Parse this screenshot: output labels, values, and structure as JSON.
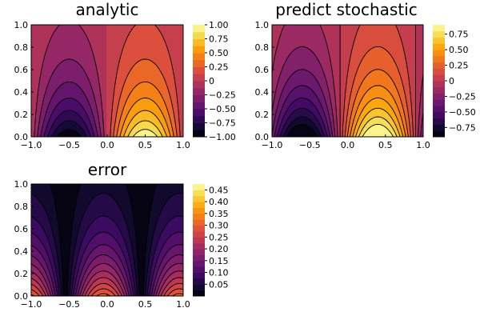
{
  "chart_data": [
    {
      "type": "heatmap",
      "subtype": "filled-contour",
      "title": "analytic",
      "colormap": "inferno",
      "x_ticks": [
        "−1.0",
        "−0.5",
        "0.0",
        "0.5",
        "1.0"
      ],
      "y_ticks": [
        "0.0",
        "0.2",
        "0.4",
        "0.6",
        "0.8",
        "1.0"
      ],
      "xlim": [
        -1,
        1
      ],
      "ylim": [
        0,
        1
      ],
      "colorbar": {
        "ticks": [
          "1.00",
          "0.75",
          "0.50",
          "0.25",
          "0",
          "−0.25",
          "−0.50",
          "−0.75",
          "−1.00"
        ],
        "levels": [
          -1.0,
          -0.875,
          -0.75,
          -0.625,
          -0.5,
          -0.375,
          -0.25,
          -0.125,
          0.0,
          0.125,
          0.25,
          0.375,
          0.5,
          0.625,
          0.75,
          0.875,
          1.0
        ]
      },
      "field": {
        "form": "sin(pi*x)*exp(-2*y)",
        "mode": "analytic",
        "x_shift": 0.0,
        "y_decay": 2.0
      }
    },
    {
      "type": "heatmap",
      "subtype": "filled-contour",
      "title": "predict stochastic",
      "colormap": "inferno",
      "x_ticks": [
        "−1.0",
        "−0.5",
        "0.0",
        "0.5",
        "1.0"
      ],
      "y_ticks": [
        "0.0",
        "0.2",
        "0.4",
        "0.6",
        "0.8",
        "1.0"
      ],
      "xlim": [
        -1,
        1
      ],
      "ylim": [
        0,
        1
      ],
      "colorbar": {
        "ticks": [
          "0.75",
          "0.50",
          "0.25",
          "0",
          "−0.25",
          "−0.50",
          "−0.75"
        ],
        "levels": [
          -0.9,
          -0.8,
          -0.7,
          -0.6,
          -0.5,
          -0.4,
          -0.3,
          -0.2,
          -0.1,
          0.0,
          0.1,
          0.2,
          0.3,
          0.4,
          0.5,
          0.6,
          0.7,
          0.8,
          0.9
        ]
      },
      "field": {
        "form": "sin(pi*(x+0.1))*exp(-2*y)",
        "mode": "predict",
        "x_shift": 0.1,
        "y_decay": 2.0
      }
    },
    {
      "type": "heatmap",
      "subtype": "filled-contour",
      "title": "error",
      "colormap": "inferno",
      "x_ticks": [
        "−1.0",
        "−0.5",
        "0.0",
        "0.5",
        "1.0"
      ],
      "y_ticks": [
        "0.0",
        "0.2",
        "0.4",
        "0.6",
        "0.8",
        "1.0"
      ],
      "xlim": [
        -1,
        1
      ],
      "ylim": [
        0,
        1
      ],
      "colorbar": {
        "ticks": [
          "0.45",
          "0.40",
          "0.35",
          "0.30",
          "0.25",
          "0.20",
          "0.15",
          "0.10",
          "0.05"
        ],
        "levels": [
          0.0,
          0.025,
          0.05,
          0.075,
          0.1,
          0.125,
          0.15,
          0.175,
          0.2,
          0.225,
          0.25,
          0.275,
          0.3,
          0.325,
          0.35,
          0.375,
          0.4,
          0.425,
          0.45,
          0.475
        ]
      },
      "field": {
        "form": "|analytic - predict stochastic|",
        "mode": "error"
      }
    }
  ]
}
